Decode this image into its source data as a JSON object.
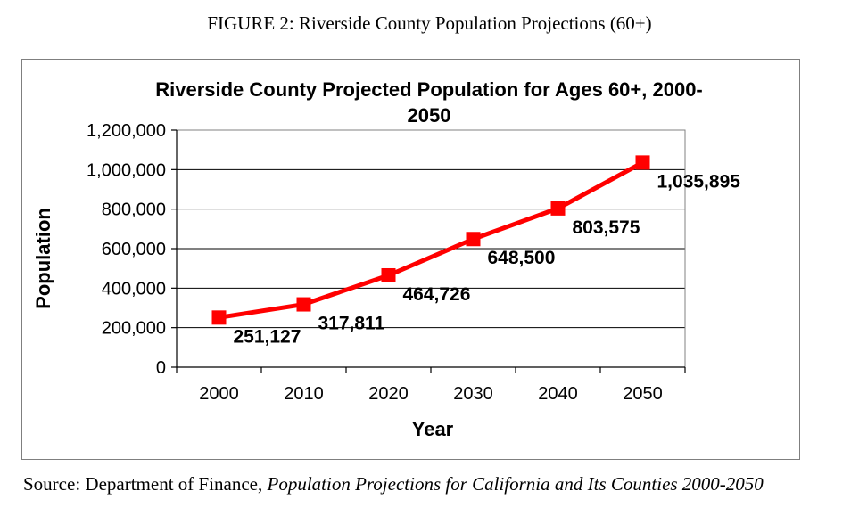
{
  "figure_title": "FIGURE 2: Riverside County Population Projections (60+)",
  "source": {
    "prefix": "Source: Department of Finance, ",
    "italic": "Population Projections for California and Its Counties 2000-2050"
  },
  "chart_data": {
    "type": "line",
    "title": "Riverside County Projected Population for Ages 60+, 2000-2050",
    "title_lines": [
      "Riverside County Projected Population for Ages 60+, 2000-",
      "2050"
    ],
    "xlabel": "Year",
    "ylabel": "Population",
    "categories": [
      "2000",
      "2010",
      "2020",
      "2030",
      "2040",
      "2050"
    ],
    "series": [
      {
        "values": [
          251127,
          317811,
          464726,
          648500,
          803575,
          1035895
        ],
        "labels": [
          "251,127",
          "317,811",
          "464,726",
          "648,500",
          "803,575",
          "1,035,895"
        ],
        "color": "#ff0000"
      }
    ],
    "ylim": [
      0,
      1200000
    ],
    "yticks": [
      0,
      200000,
      400000,
      600000,
      800000,
      1000000,
      1200000
    ],
    "ytick_labels": [
      "0",
      "200,000",
      "400,000",
      "600,000",
      "800,000",
      "1,000,000",
      "1,200,000"
    ],
    "grid": true,
    "legend": false,
    "marker": "square"
  }
}
